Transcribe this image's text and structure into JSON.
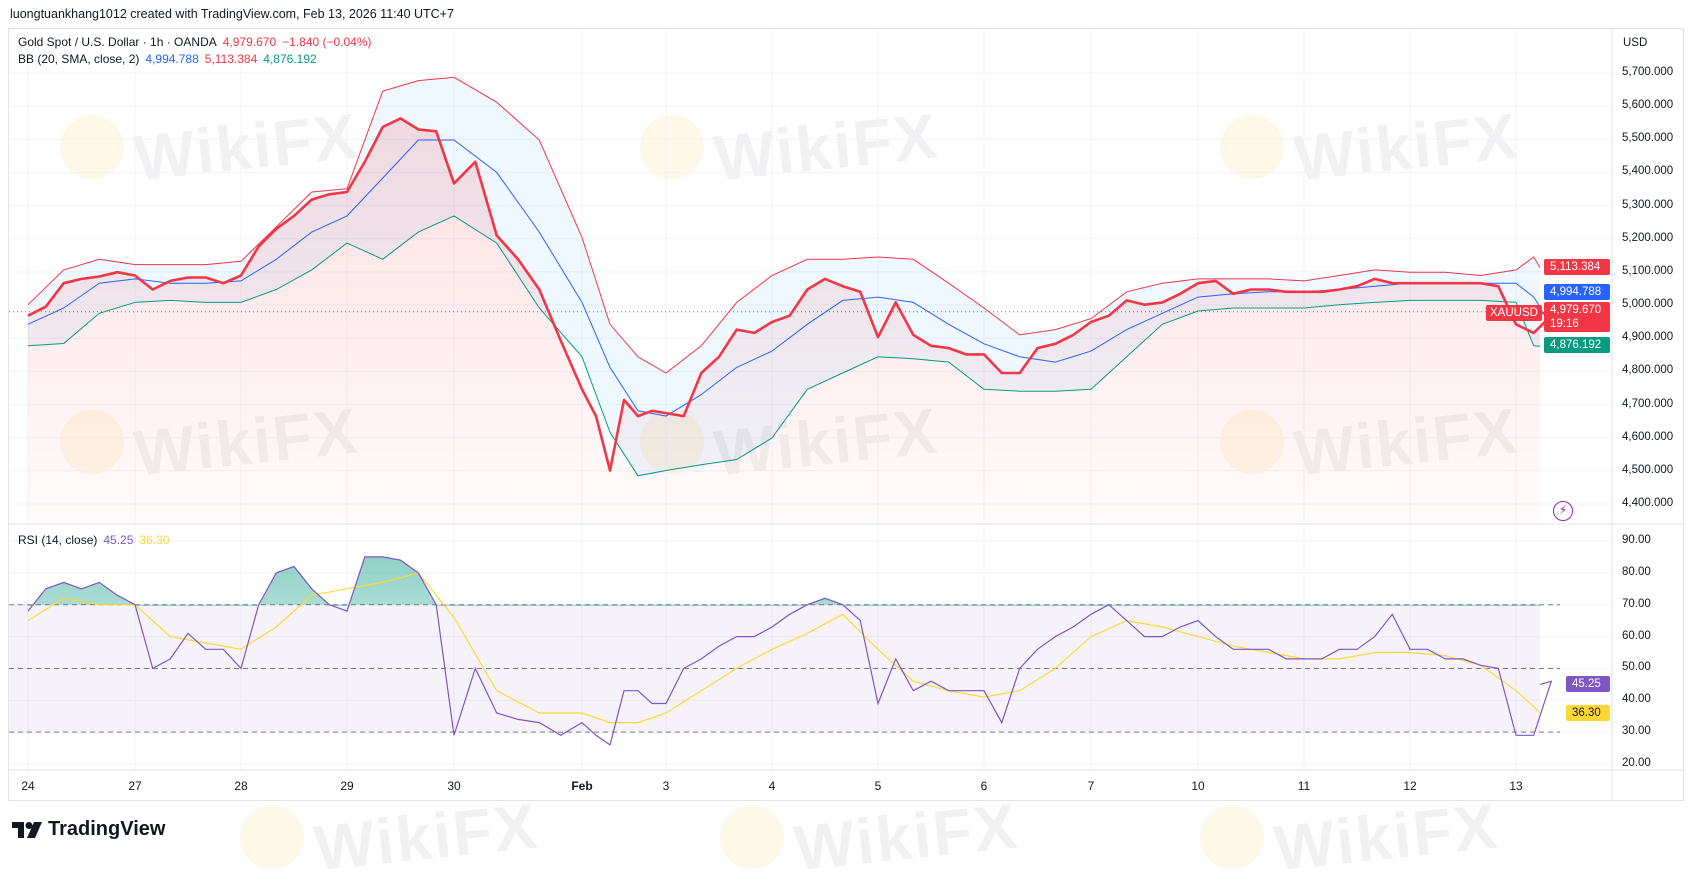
{
  "credit": "luongtuankhang1012 created with TradingView.com, Feb 13, 2026 11:40 UTC+7",
  "legend": {
    "symbol": "Gold Spot / U.S. Dollar · 1h · OANDA",
    "price": "4,979.670",
    "change": "−1.840 (−0.04%)",
    "bb_label": "BB (20, SMA, close, 2)",
    "bb_basis": "4,994.788",
    "bb_upper": "5,113.384",
    "bb_lower": "4,876.192",
    "rsi_label": "RSI (14, close)",
    "rsi_value": "45.25",
    "rsi_ma": "36.30"
  },
  "currency": "USD",
  "badges": {
    "upper": "5,113.384",
    "basis": "4,994.788",
    "symbol": "XAUUSD",
    "price": "4,979.670",
    "countdown": "19:16",
    "lower": "4,876.192",
    "rsi": "45.25",
    "rsi_ma": "36.30"
  },
  "watermark": "WikiFX",
  "brand": "TradingView",
  "icons": {
    "alert": "lightning-icon",
    "logo": "tradingview-logo-icon"
  },
  "colors": {
    "price": "#f23645",
    "basis": "#2962ff",
    "upper": "#f23645",
    "lower": "#089981",
    "rsi": "#7e57c2",
    "rsi_ma": "#fdd835"
  },
  "chart_data": [
    {
      "type": "line",
      "title": "Gold Spot / U.S. Dollar · 1h · OANDA",
      "x_tick_labels": [
        "24",
        "27",
        "28",
        "29",
        "30",
        "Feb",
        "3",
        "4",
        "5",
        "6",
        "7",
        "10",
        "11",
        "12",
        "13"
      ],
      "y_tick_labels": [
        "5,700.000",
        "5,600.000",
        "5,500.000",
        "5,400.000",
        "5,300.000",
        "5,200.000",
        "5,100.000",
        "5,000.000",
        "4,900.000",
        "4,800.000",
        "4,700.000",
        "4,600.000",
        "4,500.000",
        "4,400.000"
      ],
      "ylim": [
        4400,
        5700
      ],
      "sampling_note_hours": 4,
      "series": [
        {
          "name": "Gold Spot / U.S. Dollar",
          "days": [
            [
              4968,
              4995,
              5066,
              5079,
              5086,
              5099
            ],
            [
              5089,
              5047,
              5073,
              5083,
              5083,
              5066
            ],
            [
              5089,
              5177,
              5230,
              5269,
              5318,
              5334
            ],
            [
              5341,
              5432,
              5537,
              5563,
              5530,
              5524
            ],
            [
              5367,
              5432,
              5210,
              5138,
              5047,
              4893
            ],
            [
              4746,
              4665,
              4501,
              4714,
              4665,
              4681
            ],
            [
              4674,
              4665,
              4795,
              4844,
              4926,
              4916
            ],
            [
              4949,
              4968,
              5047,
              5079,
              5057,
              5040
            ],
            [
              4903,
              5008,
              4910,
              4877,
              4870,
              4851
            ],
            [
              4851,
              4795,
              4795,
              4870,
              4883,
              4910
            ],
            [
              4949,
              4968,
              5014,
              5001,
              5008,
              5034
            ],
            [
              5066,
              5073,
              5034,
              5047,
              5047,
              5040
            ],
            [
              5040,
              5040,
              5047,
              5057,
              5079,
              5066
            ],
            [
              5066,
              5066,
              5066,
              5066,
              5066,
              5057
            ],
            [
              4942,
              4916,
              4968,
              4979
            ]
          ]
        },
        {
          "name": "BB basis",
          "days": [
            [
              4942,
              4991,
              5066
            ],
            [
              5079,
              5066,
              5066
            ],
            [
              5073,
              5138,
              5220
            ],
            [
              5269,
              5383,
              5498
            ],
            [
              5498,
              5400,
              5220
            ],
            [
              5008,
              4812,
              4681
            ],
            [
              4665,
              4730,
              4812
            ],
            [
              4861,
              4942,
              5014
            ],
            [
              5024,
              5008,
              4942
            ],
            [
              4883,
              4844,
              4828
            ],
            [
              4861,
              4926,
              4975
            ],
            [
              5024,
              5034,
              5040
            ],
            [
              5040,
              5047,
              5057
            ],
            [
              5066,
              5066,
              5066
            ],
            [
              5066,
              5024,
              4995
            ]
          ]
        },
        {
          "name": "BB upper",
          "days": [
            [
              5001,
              5106,
              5138
            ],
            [
              5122,
              5122,
              5122
            ],
            [
              5132,
              5236,
              5341
            ],
            [
              5351,
              5645,
              5677
            ],
            [
              5687,
              5612,
              5498
            ],
            [
              5204,
              4942,
              4844
            ],
            [
              4795,
              4877,
              5008
            ],
            [
              5089,
              5138,
              5138
            ],
            [
              5145,
              5138,
              5066
            ],
            [
              4991,
              4910,
              4926
            ],
            [
              4959,
              5040,
              5066
            ],
            [
              5079,
              5079,
              5079
            ],
            [
              5073,
              5089,
              5106
            ],
            [
              5099,
              5099,
              5089
            ],
            [
              5106,
              5145,
              5113
            ]
          ]
        },
        {
          "name": "BB lower",
          "days": [
            [
              4877,
              4884,
              4975
            ],
            [
              5008,
              5014,
              5008
            ],
            [
              5008,
              5047,
              5106
            ],
            [
              5187,
              5138,
              5220
            ],
            [
              5269,
              5187,
              4991
            ],
            [
              4844,
              4616,
              4485
            ],
            [
              4501,
              4518,
              4534
            ],
            [
              4599,
              4746,
              4795
            ],
            [
              4844,
              4838,
              4828
            ],
            [
              4746,
              4740,
              4740
            ],
            [
              4746,
              4844,
              4942
            ],
            [
              4982,
              4991,
              4991
            ],
            [
              4991,
              5001,
              5008
            ],
            [
              5014,
              5014,
              5014
            ],
            [
              5008,
              4877,
              4876
            ]
          ]
        }
      ]
    },
    {
      "type": "line",
      "title": "RSI (14, close)",
      "y_tick_labels": [
        "90.00",
        "80.00",
        "70.00",
        "60.00",
        "50.00",
        "40.00",
        "30.00",
        "20.00"
      ],
      "ylim": [
        20,
        90
      ],
      "bands": [
        30,
        50,
        70
      ],
      "series": [
        {
          "name": "RSI",
          "days": [
            [
              68,
              75,
              77,
              75,
              77,
              73
            ],
            [
              70,
              50,
              53,
              61,
              56,
              56
            ],
            [
              50,
              70,
              80,
              82,
              75,
              70
            ],
            [
              68,
              85,
              85,
              84,
              80,
              70
            ],
            [
              29,
              50,
              36,
              34,
              33,
              29
            ],
            [
              33,
              29,
              26,
              43,
              43,
              39
            ],
            [
              39,
              50,
              53,
              57,
              60,
              60
            ],
            [
              63,
              67,
              70,
              72,
              70,
              65
            ],
            [
              39,
              53,
              43,
              46,
              43,
              43
            ],
            [
              43,
              33,
              50,
              56,
              60,
              63
            ],
            [
              67,
              70,
              65,
              60,
              60,
              63
            ],
            [
              65,
              60,
              56,
              56,
              56,
              53
            ],
            [
              53,
              53,
              56,
              56,
              60,
              67
            ],
            [
              56,
              56,
              53,
              53,
              51,
              50
            ],
            [
              29,
              29,
              46,
              45
            ]
          ]
        },
        {
          "name": "RSI MA",
          "days": [
            [
              65,
              72,
              70
            ],
            [
              70,
              60,
              58
            ],
            [
              56,
              63,
              73
            ],
            [
              75,
              77,
              80
            ],
            [
              66,
              43,
              36
            ],
            [
              36,
              33,
              33
            ],
            [
              36,
              43,
              50
            ],
            [
              56,
              61,
              67
            ],
            [
              56,
              46,
              43
            ],
            [
              41,
              43,
              50
            ],
            [
              60,
              65,
              63
            ],
            [
              60,
              57,
              55
            ],
            [
              53,
              53,
              55
            ],
            [
              55,
              54,
              51
            ],
            [
              43,
              38,
              36
            ]
          ]
        }
      ]
    }
  ]
}
